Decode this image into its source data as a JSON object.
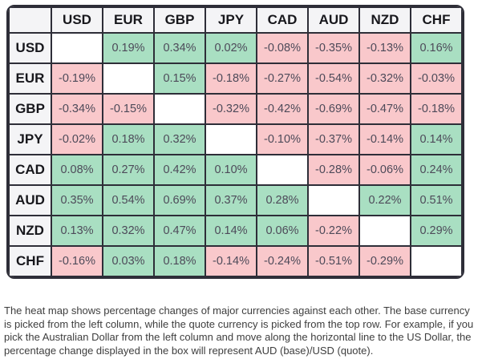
{
  "chart_data": {
    "type": "heatmap",
    "unit": "%",
    "columns": [
      "USD",
      "EUR",
      "GBP",
      "JPY",
      "CAD",
      "AUD",
      "NZD",
      "CHF"
    ],
    "rows": [
      "USD",
      "EUR",
      "GBP",
      "JPY",
      "CAD",
      "AUD",
      "NZD",
      "CHF"
    ],
    "values": [
      [
        null,
        0.19,
        0.34,
        0.02,
        -0.08,
        -0.35,
        -0.13,
        0.16
      ],
      [
        -0.19,
        null,
        0.15,
        -0.18,
        -0.27,
        -0.54,
        -0.32,
        -0.03
      ],
      [
        -0.34,
        -0.15,
        null,
        -0.32,
        -0.42,
        -0.69,
        -0.47,
        -0.18
      ],
      [
        -0.02,
        0.18,
        0.32,
        null,
        -0.1,
        -0.37,
        -0.14,
        0.14
      ],
      [
        0.08,
        0.27,
        0.42,
        0.1,
        null,
        -0.28,
        -0.06,
        0.24
      ],
      [
        0.35,
        0.54,
        0.69,
        0.37,
        0.28,
        null,
        0.22,
        0.51
      ],
      [
        0.13,
        0.32,
        0.47,
        0.14,
        0.06,
        -0.22,
        null,
        0.29
      ],
      [
        -0.16,
        0.03,
        0.18,
        -0.14,
        -0.24,
        -0.51,
        -0.29,
        null
      ]
    ],
    "legend_position": "none",
    "grid": true
  },
  "table": {
    "corner_label": ""
  },
  "caption": {
    "text": "The heat map shows percentage changes of major currencies against each other. The base currency is picked from the left column, while the quote currency is picked from the top row. For example, if you pick the Australian Dollar from the left column and move along the horizontal line to the US Dollar, the percentage change displayed in the box will represent AUD (base)/USD (quote)."
  },
  "colors": {
    "positive_bg": "#A9DFC2",
    "negative_bg": "#F9C8CB",
    "header_bg": "#F4F4F6",
    "border": "#2E2E38",
    "cell_text": "#4D4A59",
    "header_text": "#17171C",
    "caption_text": "#3E3E3E"
  }
}
